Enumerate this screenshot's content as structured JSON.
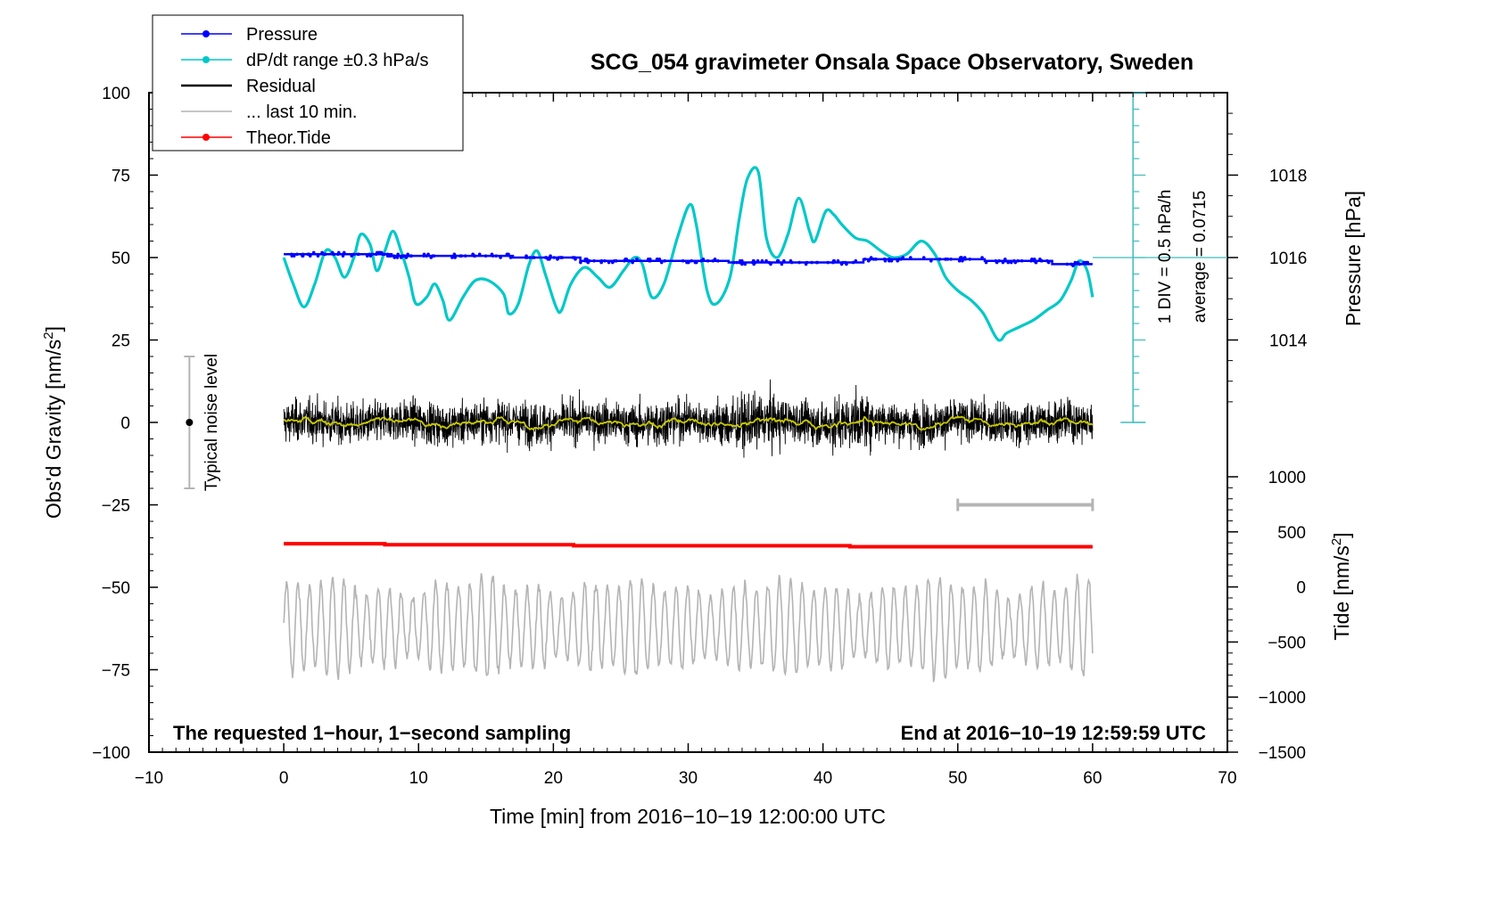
{
  "chart_data": {
    "type": "line",
    "title": "SCG_054 gravimeter Onsala Space Observatory, Sweden",
    "xlabel": "Time [min] from 2016−10−19 12:00:00 UTC",
    "ylabel": "Obs'd Gravity [nm/s",
    "ylabel_sup": "2",
    "ylabel_close": "]",
    "xlim": [
      -10,
      70
    ],
    "ylim": [
      -100,
      100
    ],
    "x_ticks": [
      {
        "v": -10,
        "label": "−10"
      },
      {
        "v": 0,
        "label": "0"
      },
      {
        "v": 10,
        "label": "10"
      },
      {
        "v": 20,
        "label": "20"
      },
      {
        "v": 30,
        "label": "30"
      },
      {
        "v": 40,
        "label": "40"
      },
      {
        "v": 50,
        "label": "50"
      },
      {
        "v": 60,
        "label": "60"
      },
      {
        "v": 70,
        "label": "70"
      }
    ],
    "y_ticks": [
      {
        "v": 100,
        "label": "100"
      },
      {
        "v": 75,
        "label": "75"
      },
      {
        "v": 50,
        "label": "50"
      },
      {
        "v": 25,
        "label": "25"
      },
      {
        "v": 0,
        "label": "0"
      },
      {
        "v": -25,
        "label": "−25"
      },
      {
        "v": -50,
        "label": "−50"
      },
      {
        "v": -75,
        "label": "−75"
      },
      {
        "v": -100,
        "label": "−100"
      }
    ],
    "pressure_axis": {
      "label": "Pressure [hPa]",
      "ticks": [
        {
          "v": 1018,
          "label": "1018"
        },
        {
          "v": 1016,
          "label": "1016"
        },
        {
          "v": 1014,
          "label": "1014"
        }
      ],
      "gravity_equiv": {
        "hpa_per_25_units": 2,
        "ref_hpa": 1016,
        "ref_gravity": 50
      }
    },
    "tide_axis": {
      "label": "Tide [nm/s",
      "label_sup": "2",
      "label_close": "]",
      "ticks": [
        {
          "v": 1000,
          "label": "1000"
        },
        {
          "v": 500,
          "label": "500"
        },
        {
          "v": 0,
          "label": "0"
        },
        {
          "v": -500,
          "label": "−500"
        },
        {
          "v": -1000,
          "label": "−1000"
        },
        {
          "v": -1500,
          "label": "−1500"
        }
      ],
      "range": [
        -1500,
        1000
      ]
    },
    "legend": {
      "placement": "top-left",
      "entries": [
        {
          "label": "Pressure",
          "color": "#0000ff",
          "marker": true
        },
        {
          "label": "dP/dt range ±0.3 hPa/s",
          "color": "#00c8c8",
          "marker": true
        },
        {
          "label": "Residual",
          "color": "#000000",
          "marker": false
        },
        {
          "label": "... last 10 min.",
          "color": "#b4b4b4",
          "marker": false
        },
        {
          "label": "Theor.Tide",
          "color": "#ff0000",
          "marker": true
        }
      ]
    },
    "scale_bar": {
      "label": "1 DIV = 0.5 hPa/h",
      "average_label": "average = 0.0715",
      "x": 63,
      "y_top": 100,
      "y_bottom": 0,
      "ref_y": 50
    },
    "noise_bar": {
      "label": "Typical noise level",
      "x": -7,
      "y_center": 0,
      "y_min": -20,
      "y_max": 20
    },
    "last10_bar": {
      "x_start": 50,
      "x_end": 60,
      "y": -25
    },
    "bottom_left_note": "The requested 1−hour, 1−second sampling",
    "bottom_right_note": "End at 2016−10−19 12:59:59 UTC",
    "series": [
      {
        "name": "Pressure",
        "color": "#0000ff",
        "steps": [
          [
            0,
            51
          ],
          [
            8,
            50.5
          ],
          [
            17,
            50
          ],
          [
            22,
            49
          ],
          [
            33,
            48.5
          ],
          [
            43,
            49.5
          ],
          [
            52,
            49
          ],
          [
            57,
            48
          ],
          [
            60,
            48
          ]
        ]
      },
      {
        "name": "dP/dt range ±0.3 hPa/s",
        "color": "#00c8c8",
        "x": [
          0,
          0.7,
          1.5,
          2.3,
          3.1,
          3.8,
          4.5,
          5.2,
          5.7,
          6.4,
          6.9,
          7.5,
          8.1,
          8.7,
          9.3,
          9.8,
          10.6,
          11.2,
          11.8,
          12.3,
          13.3,
          14.2,
          15.2,
          16.3,
          16.7,
          17.4,
          18.2,
          18.8,
          19.4,
          20.2,
          20.6,
          21.3,
          22.3,
          23.3,
          24.2,
          25.2,
          26,
          26.6,
          27.3,
          28.2,
          29.2,
          30.1,
          30.6,
          31.4,
          32.1,
          33.1,
          33.8,
          34.4,
          35.2,
          35.8,
          36.6,
          37.4,
          38.2,
          39,
          39.4,
          40.2,
          40.8,
          41.4,
          42.4,
          43.3,
          44.3,
          45.2,
          46.2,
          47.3,
          48.3,
          49.1,
          50,
          51,
          51.9,
          52.8,
          53.2,
          53.6,
          54.6,
          55.6,
          56.6,
          57.6,
          58.4,
          59,
          59.6,
          60
        ],
        "y": [
          50,
          42,
          35,
          42,
          52,
          50,
          44,
          50,
          57,
          54,
          46,
          52,
          58,
          52,
          44,
          36,
          38,
          42,
          37,
          31,
          38,
          43,
          43,
          39,
          33,
          36,
          48,
          52,
          45,
          35,
          34,
          42,
          47,
          44,
          41,
          46,
          50,
          48,
          38,
          42,
          56,
          66,
          60,
          40,
          36,
          44,
          62,
          74,
          76,
          56,
          50,
          57,
          68,
          58,
          55,
          64,
          63,
          60,
          56,
          55,
          52,
          50,
          51,
          55,
          51,
          44,
          40,
          37,
          33,
          26,
          25,
          27,
          29,
          31,
          34,
          37,
          43,
          49,
          46,
          38
        ]
      },
      {
        "name": "Residual",
        "color": "#000000"
      },
      {
        "name": "... last 10 min.",
        "color": "#b4b4b4"
      },
      {
        "name": "Theor.Tide",
        "color": "#ff0000",
        "steps": [
          [
            0,
            -36.8
          ],
          [
            7.5,
            -37.1
          ],
          [
            21.5,
            -37.4
          ],
          [
            42,
            -37.7
          ],
          [
            60,
            -37.8
          ]
        ]
      }
    ]
  }
}
